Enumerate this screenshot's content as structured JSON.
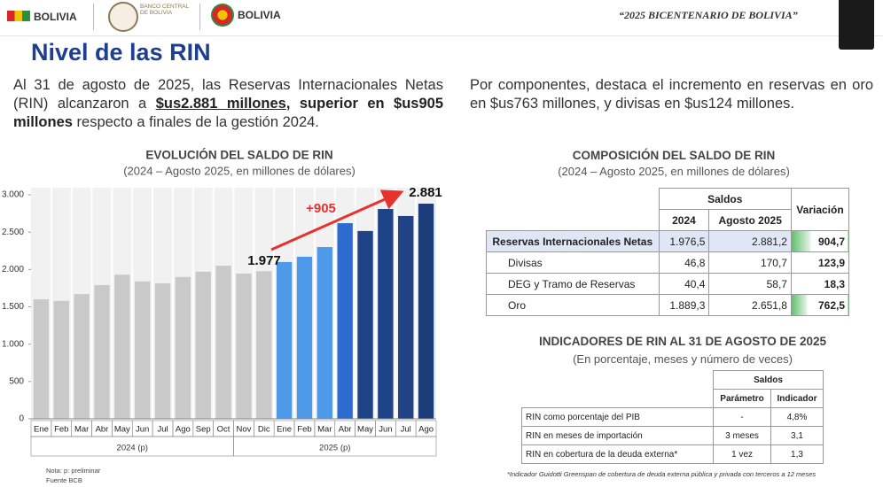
{
  "header": {
    "logo_left": "BOLIVIA",
    "bank_name": "BANCO CENTRAL DE BOLIVIA",
    "logo_right": "BOLIVIA",
    "motto": "“2025 BICENTENARIO DE BOLIVIA”"
  },
  "title": "Nivel de las RIN",
  "intro": {
    "part1": "Al 31 de agosto de 2025, las Reservas Internacionales Netas (RIN) alcanzaron a ",
    "highlight": "$us2.881 millones",
    "bold": ", superior en $us905 millones",
    "part2": " respecto a finales de la gestión 2024."
  },
  "components_text": "Por componentes, destaca el incremento en reservas en oro en $us763 millones, y divisas en $us124 millones.",
  "chart_data": {
    "type": "bar",
    "title": "EVOLUCIÓN DEL SALDO DE RIN",
    "subtitle": "(2024 – Agosto 2025, en millones de dólares)",
    "categories": [
      "Ene",
      "Feb",
      "Mar",
      "Abr",
      "May",
      "Jun",
      "Jul",
      "Ago",
      "Sep",
      "Oct",
      "Nov",
      "Dic",
      "Ene",
      "Feb",
      "Mar",
      "Abr",
      "May",
      "Jun",
      "Jul",
      "Ago"
    ],
    "x_groups": [
      "2024 (p)",
      "2025 (p)"
    ],
    "values": [
      1600,
      1580,
      1670,
      1790,
      1930,
      1840,
      1815,
      1900,
      1970,
      2050,
      1945,
      1977,
      2100,
      2170,
      2300,
      2620,
      2515,
      2810,
      2716,
      2881
    ],
    "colors": [
      "#c9c9c9",
      "#c9c9c9",
      "#c9c9c9",
      "#c9c9c9",
      "#c9c9c9",
      "#c9c9c9",
      "#c9c9c9",
      "#c9c9c9",
      "#c9c9c9",
      "#c9c9c9",
      "#c9c9c9",
      "#c9c9c9",
      "#4f9ae8",
      "#4f9ae8",
      "#4f9ae8",
      "#2d6ccf",
      "#1f4386",
      "#1f4386",
      "#1f4386",
      "#1c3c7a"
    ],
    "ylim": [
      0,
      3000
    ],
    "yticks": [
      0,
      500,
      {
        "value": 1000,
        "label": "1.000"
      },
      {
        "value": 1500,
        "label": "1.500"
      },
      {
        "value": 2000,
        "label": "2.000"
      },
      {
        "value": 2500,
        "label": "2.500"
      },
      {
        "value": 3000,
        "label": "3.000"
      }
    ],
    "annotations": [
      "1.977",
      "+905",
      "2.881"
    ],
    "notes": [
      "Nota: p: preliminar",
      "Fuente BCB"
    ]
  },
  "composition": {
    "title": "COMPOSICIÓN DEL SALDO DE RIN",
    "subtitle": "(2024 – Agosto 2025, en millones de dólares)",
    "group_header": "Saldos",
    "variation_header": "Variación",
    "years": [
      "2024",
      "Agosto 2025"
    ],
    "rows": [
      [
        "Reservas Internacionales Netas",
        "1.976,5",
        "2.881,2",
        "904,7"
      ],
      [
        "Divisas",
        "46,8",
        "170,7",
        "123,9"
      ],
      [
        "DEG y Tramo de Reservas",
        "40,4",
        "58,7",
        "18,3"
      ],
      [
        "Oro",
        "1.889,3",
        "2.651,8",
        "762,5"
      ]
    ]
  },
  "indicators": {
    "title": "INDICADORES DE RIN AL 31 DE AGOSTO DE 2025",
    "subtitle": "(En porcentaje, meses y número de veces)",
    "group_header": "Saldos",
    "columns": [
      "Parámetro",
      "Indicador"
    ],
    "rows": [
      [
        "RIN como porcentaje del PIB",
        "-",
        "4,8%"
      ],
      [
        "RIN en meses de importación",
        "3 meses",
        "3,1"
      ],
      [
        "RIN en cobertura de la deuda externa*",
        "1 vez",
        "1,3"
      ]
    ],
    "footnote": "*Indicador Guidotti Greenspan de cobertura de deuda externa pública y privada con terceros a 12 meses"
  }
}
